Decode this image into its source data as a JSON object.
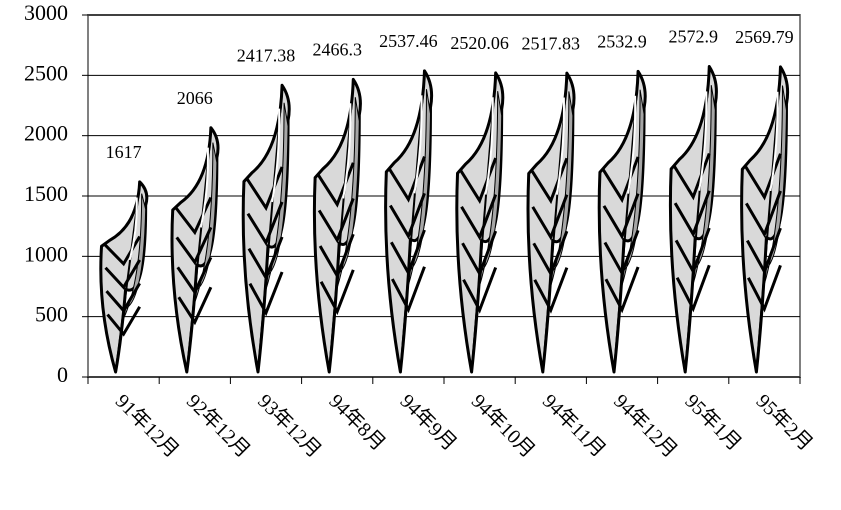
{
  "chart_data": {
    "type": "bar",
    "categories": [
      "91年12月",
      "92年12月",
      "93年12月",
      "94年8月",
      "94年9月",
      "94年10月",
      "94年11月",
      "94年12月",
      "95年1月",
      "95年2月"
    ],
    "values": [
      1617,
      2066,
      2417.38,
      2466.3,
      2537.46,
      2520.06,
      2517.83,
      2532.9,
      2572.9,
      2569.79
    ],
    "color": "#d9d9d9",
    "ylim": [
      0,
      3000
    ],
    "yticks": [
      0,
      500,
      1000,
      1500,
      2000,
      2500,
      3000
    ],
    "grid": true
  }
}
